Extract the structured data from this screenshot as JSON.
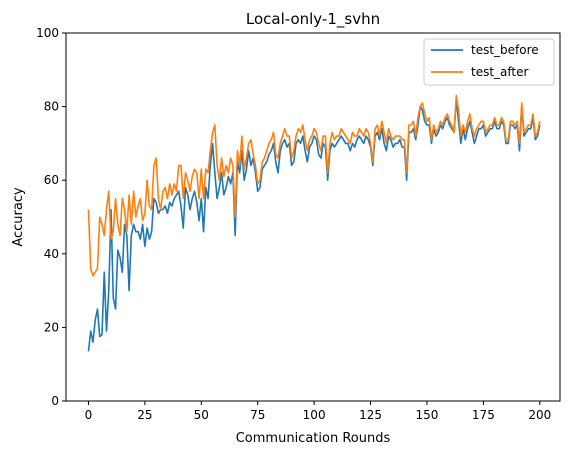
{
  "chart_data": {
    "type": "line",
    "title": "Local-only-1_svhn",
    "xlabel": "Communication Rounds",
    "ylabel": "Accuracy",
    "xlim": [
      -9.95,
      208.95
    ],
    "ylim": [
      0,
      100
    ],
    "xticks": [
      0,
      25,
      50,
      75,
      100,
      125,
      150,
      175,
      200
    ],
    "yticks": [
      0,
      20,
      40,
      60,
      80,
      100
    ],
    "grid": false,
    "legend_position": "top-right",
    "series": [
      {
        "name": "test_before",
        "color": "#1f77b4",
        "values": [
          13.5,
          19,
          16,
          22,
          25,
          17.5,
          18,
          35,
          19,
          30,
          52,
          28,
          25,
          41,
          39,
          35,
          48,
          45,
          30,
          45,
          48,
          46,
          46,
          44,
          48,
          42,
          47,
          44,
          46,
          55,
          54,
          51,
          52,
          52,
          53,
          51,
          54,
          53,
          55,
          56,
          57,
          53,
          47,
          58,
          56,
          52,
          55,
          57,
          54,
          49,
          55,
          46,
          58,
          55,
          64,
          70,
          62,
          55,
          58,
          62,
          56,
          58,
          61,
          59,
          62,
          45,
          65,
          62,
          68,
          60,
          63,
          68,
          64,
          66,
          62,
          57,
          58,
          63,
          64,
          65,
          67,
          68,
          70,
          65,
          62,
          68,
          70,
          71,
          69,
          70,
          64,
          65,
          70,
          71,
          70,
          72,
          68,
          65,
          69,
          70,
          72,
          71,
          67,
          66,
          70,
          69,
          60,
          68,
          70,
          69,
          70,
          71,
          72,
          71,
          70,
          70,
          68,
          70,
          69,
          71,
          72,
          71,
          70,
          72,
          71,
          69,
          64,
          72,
          73,
          71,
          74,
          70,
          68,
          72,
          71,
          69,
          70,
          70,
          71,
          69,
          69,
          60,
          73,
          73,
          74,
          71,
          75,
          80,
          79,
          76,
          75,
          75,
          70,
          74,
          72,
          73,
          75,
          74,
          76,
          77,
          75,
          74,
          73,
          82,
          76,
          70,
          74,
          71,
          74,
          76,
          73,
          70,
          72,
          74,
          74,
          75,
          72,
          73,
          74,
          74,
          76,
          74,
          74,
          76,
          75,
          70,
          70,
          75,
          75,
          74,
          75,
          68,
          80,
          72,
          73,
          74,
          74,
          77,
          71,
          72,
          75
        ]
      },
      {
        "name": "test_after",
        "color": "#ff7f0e",
        "values": [
          52,
          36,
          34,
          35,
          36,
          50,
          48,
          45,
          52,
          57,
          44,
          46,
          55,
          48,
          45,
          55,
          52,
          46,
          56,
          48,
          57,
          50,
          53,
          55,
          49,
          51,
          60,
          53,
          52,
          64,
          66,
          55,
          52,
          57,
          58,
          55,
          59,
          56,
          59,
          57,
          64,
          64,
          55,
          62,
          60,
          57,
          61,
          63,
          62,
          55,
          63,
          55,
          63,
          62,
          68,
          73,
          75,
          64,
          60,
          66,
          61,
          64,
          62,
          66,
          64,
          50,
          68,
          64,
          72,
          63,
          66,
          70,
          71,
          67,
          64,
          59,
          60,
          65,
          66,
          68,
          70,
          71,
          73,
          67,
          66,
          70,
          72,
          74,
          72,
          72,
          66,
          68,
          72,
          74,
          73,
          75,
          71,
          68,
          71,
          72,
          74,
          73,
          70,
          68,
          72,
          72,
          62,
          70,
          73,
          71,
          72,
          72,
          74,
          73,
          72,
          71,
          70,
          73,
          72,
          72,
          74,
          73,
          72,
          74,
          73,
          70,
          65,
          74,
          75,
          72,
          76,
          73,
          70,
          74,
          72,
          71,
          72,
          72,
          72,
          71,
          71,
          62,
          75,
          75,
          76,
          72,
          77,
          80,
          81,
          78,
          76,
          77,
          71,
          75,
          73,
          74,
          76,
          75,
          77,
          78,
          76,
          75,
          73,
          83,
          79,
          72,
          75,
          73,
          76,
          78,
          74,
          72,
          74,
          75,
          76,
          76,
          73,
          74,
          75,
          75,
          77,
          75,
          75,
          77,
          76,
          71,
          71,
          76,
          76,
          75,
          76,
          70,
          81,
          73,
          74,
          75,
          75,
          78,
          72,
          73,
          76
        ]
      }
    ]
  }
}
